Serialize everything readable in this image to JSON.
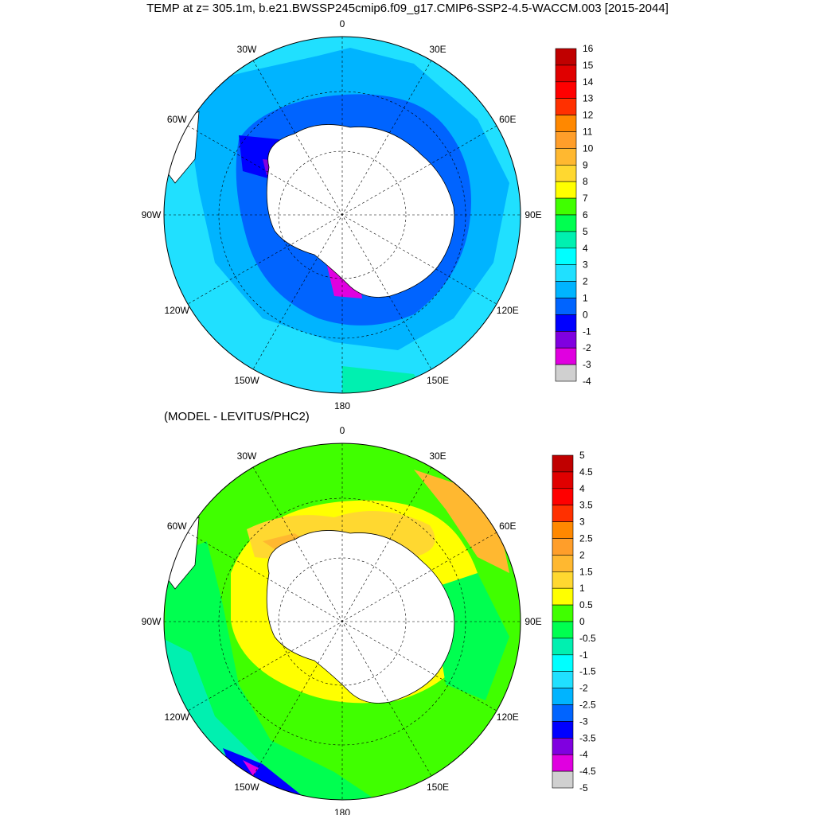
{
  "title": "TEMP at z= 305.1m, b.e21.BWSSP245cmip6.f09_g17.CMIP6-SSP2-4.5-WACCM.003 [2015-2044]",
  "subtitle": "(MODEL - LEVITUS/PHC2)",
  "maps": [
    {
      "longitude_labels": [
        "0",
        "30E",
        "60E",
        "90E",
        "120E",
        "150E",
        "180",
        "150W",
        "120W",
        "90W",
        "60W",
        "30W"
      ],
      "colorbar": {
        "levels": [
          "16",
          "15",
          "14",
          "13",
          "12",
          "11",
          "10",
          "9",
          "8",
          "7",
          "6",
          "5",
          "4",
          "3",
          "2",
          "1",
          "0",
          "-1",
          "-2",
          "-3",
          "-4"
        ],
        "colors": [
          "#c00000",
          "#e00000",
          "#ff0000",
          "#ff3000",
          "#ff8800",
          "#ff9e2a",
          "#ffb830",
          "#ffd830",
          "#ffff00",
          "#40ff00",
          "#00ff50",
          "#00f0b0",
          "#00ffff",
          "#20e0ff",
          "#00b4ff",
          "#0064ff",
          "#0000ff",
          "#8000e0",
          "#e000e0",
          "#d0d0d0"
        ]
      }
    },
    {
      "longitude_labels": [
        "0",
        "30E",
        "60E",
        "90E",
        "120E",
        "150E",
        "180",
        "150W",
        "120W",
        "90W",
        "60W",
        "30W"
      ],
      "colorbar": {
        "levels": [
          "5",
          "4.5",
          "4",
          "3.5",
          "3",
          "2.5",
          "2",
          "1.5",
          "1",
          "0.5",
          "0",
          "-0.5",
          "-1",
          "-1.5",
          "-2",
          "-2.5",
          "-3",
          "-3.5",
          "-4",
          "-4.5",
          "-5"
        ],
        "colors": [
          "#c00000",
          "#e00000",
          "#ff0000",
          "#ff3000",
          "#ff8800",
          "#ff9e2a",
          "#ffb830",
          "#ffd830",
          "#ffff00",
          "#40ff00",
          "#00ff50",
          "#00f0b0",
          "#00ffff",
          "#20e0ff",
          "#00b4ff",
          "#0064ff",
          "#0000ff",
          "#8000e0",
          "#e000e0",
          "#d0d0d0"
        ]
      }
    }
  ]
}
